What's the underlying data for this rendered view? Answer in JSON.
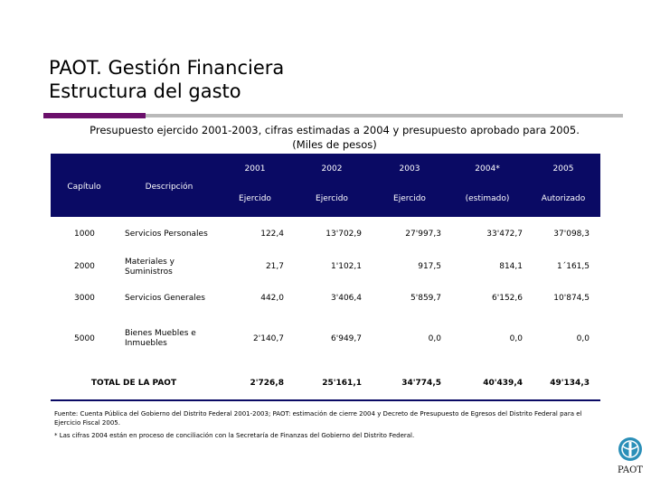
{
  "title": {
    "line1": "PAOT. Gestión Financiera",
    "line2": "Estructura del gasto"
  },
  "subtitle": {
    "line1": "Presupuesto ejercido 2001-2003, cifras estimadas a 2004 y presupuesto aprobado para 2005.",
    "line2": "(Miles de pesos)"
  },
  "table": {
    "header": {
      "capitulo": "Capítulo",
      "descripcion": "Descripción",
      "years": [
        "2001",
        "2002",
        "2003",
        "2004*",
        "2005"
      ],
      "subs": [
        "Ejercido",
        "Ejercido",
        "Ejercido",
        "(estimado)",
        "Autorizado"
      ]
    },
    "rows": [
      {
        "cap": "1000",
        "desc": "Servicios Personales",
        "values": [
          "122,4",
          "13'702,9",
          "27'997,3",
          "33'472,7",
          "37'098,3"
        ]
      },
      {
        "cap": "2000",
        "desc": "Materiales y Suministros",
        "values": [
          "21,7",
          "1'102,1",
          "917,5",
          "814,1",
          "1´161,5"
        ]
      },
      {
        "cap": "3000",
        "desc": "Servicios Generales",
        "values": [
          "442,0",
          "3'406,4",
          "5'859,7",
          "6'152,6",
          "10'874,5"
        ]
      },
      {
        "cap": "5000",
        "desc": "Bienes Muebles e Inmuebles",
        "values": [
          "2'140,7",
          "6'949,7",
          "0,0",
          "0,0",
          "0,0"
        ]
      }
    ],
    "total": {
      "label": "TOTAL DE LA PAOT",
      "values": [
        "2'726,8",
        "25'161,1",
        "34'774,5",
        "40'439,4",
        "49'134,3"
      ]
    }
  },
  "footnotes": {
    "source": "Fuente: Cuenta Pública del Gobierno del Distrito Federal 2001-2003; PAOT: estimación de cierre 2004 y Decreto de Presupuesto de Egresos del Distrito Federal para el Ejercicio Fiscal 2005.",
    "note": "* Las cifras 2004 están en proceso de conciliación con la Secretaría de Finanzas del Gobierno del Distrito Federal."
  },
  "logo": {
    "text": "PAOT",
    "icon": "paot-logo-icon",
    "color": "#2a8fb8"
  }
}
